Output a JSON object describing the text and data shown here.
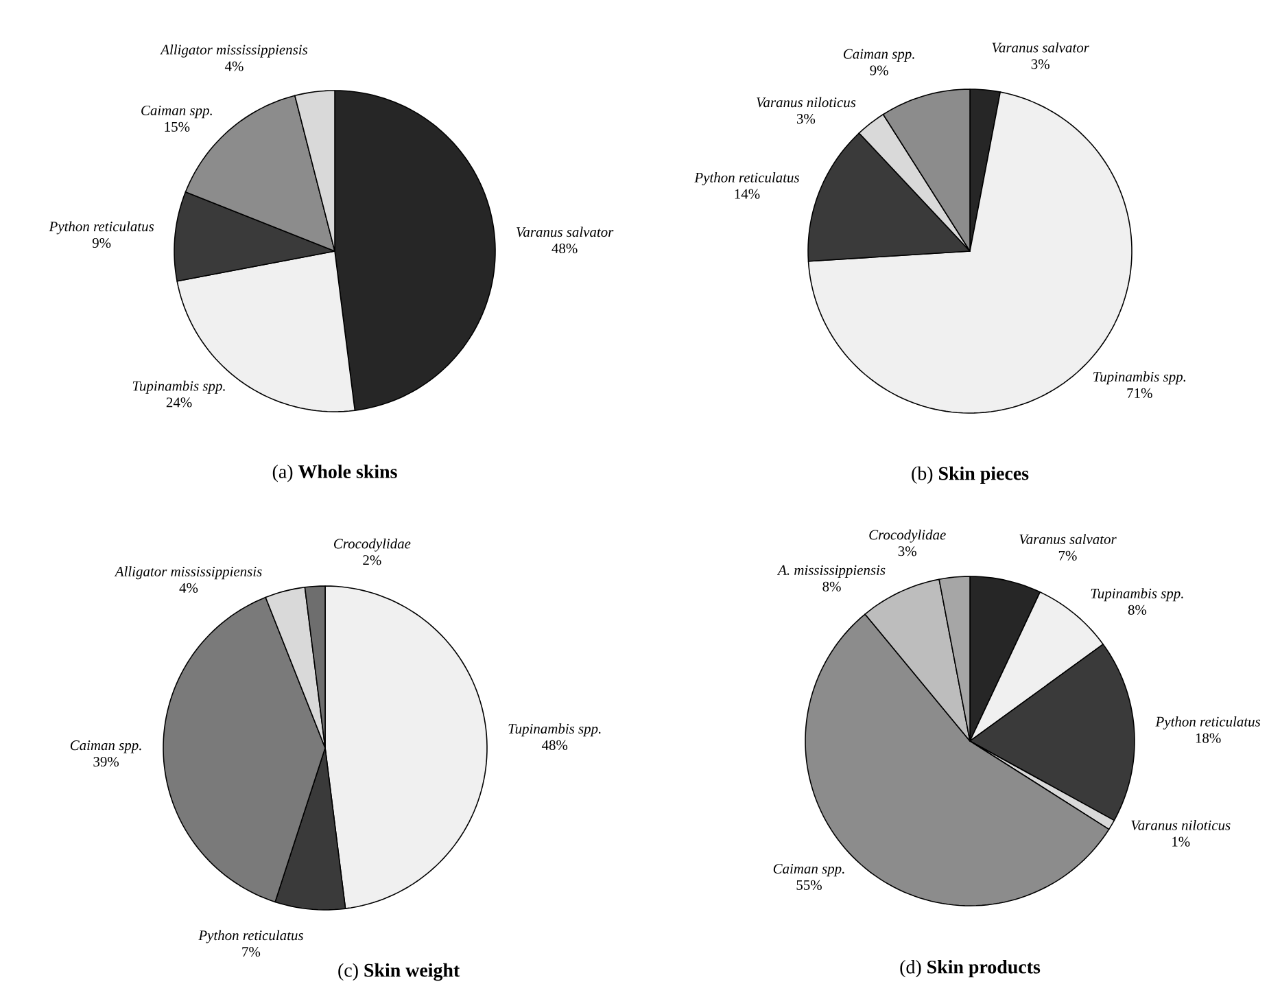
{
  "chart_data": [
    {
      "type": "pie",
      "title": "(a) **Whole skins**",
      "categories": [
        "Varanus salvator",
        "Tupinambis spp.",
        "Python reticulatus",
        "Caiman spp.",
        "Alligator mississippiensis"
      ],
      "values": [
        48,
        24,
        9,
        15,
        4
      ],
      "value_labels": [
        "48%",
        "24%",
        "9%",
        "15%",
        "4%"
      ],
      "colors": [
        "#262626",
        "#f0f0f0",
        "#3a3a3a",
        "#8c8c8c",
        "#d9d9d9"
      ]
    },
    {
      "type": "pie",
      "title": "(b) **Skin pieces**",
      "categories": [
        "Varanus salvator",
        "Tupinambis spp.",
        "Python reticulatus",
        "Varanus niloticus",
        "Caiman spp."
      ],
      "values": [
        3,
        71,
        14,
        3,
        9
      ],
      "value_labels": [
        "3%",
        "71%",
        "14%",
        "3%",
        "9%"
      ],
      "colors": [
        "#262626",
        "#f0f0f0",
        "#3a3a3a",
        "#d9d9d9",
        "#8c8c8c"
      ]
    },
    {
      "type": "pie",
      "title": "(c) **Skin weight**",
      "categories": [
        "Tupinambis spp.",
        "Python reticulatus",
        "Caiman spp.",
        "Alligator mississippiensis",
        "Crocodylidae"
      ],
      "values": [
        48,
        7,
        39,
        4,
        2
      ],
      "value_labels": [
        "48%",
        "7%",
        "39%",
        "4%",
        "2%"
      ],
      "colors": [
        "#f0f0f0",
        "#3a3a3a",
        "#7a7a7a",
        "#d9d9d9",
        "#6e6e6e"
      ]
    },
    {
      "type": "pie",
      "title": "(d) **Skin products**",
      "categories": [
        "Varanus salvator",
        "Tupinambis spp.",
        "Python reticulatus",
        "Varanus niloticus",
        "Caiman spp.",
        "A. mississippiensis",
        "Crocodylidae"
      ],
      "values": [
        7,
        8,
        18,
        1,
        55,
        8,
        3
      ],
      "value_labels": [
        "7%",
        "8%",
        "18%",
        "1%",
        "55%",
        "8%",
        "3%"
      ],
      "colors": [
        "#262626",
        "#f0f0f0",
        "#3a3a3a",
        "#d9d9d9",
        "#8c8c8c",
        "#bdbdbd",
        "#a6a6a6"
      ]
    }
  ]
}
